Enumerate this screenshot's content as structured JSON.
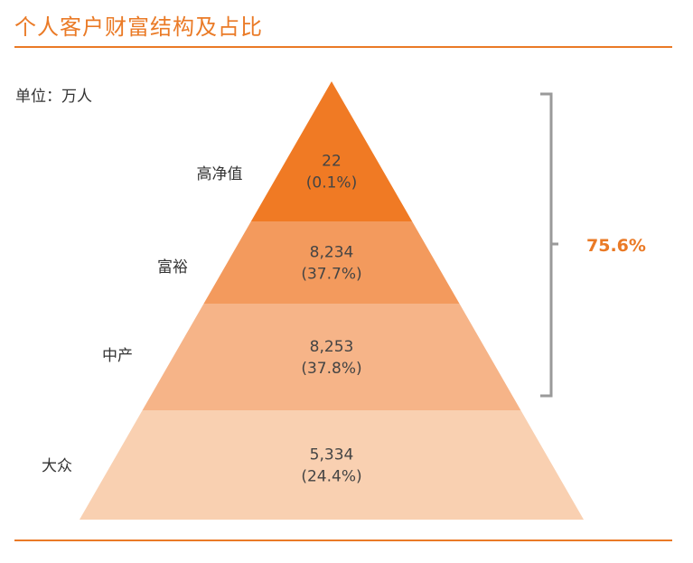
{
  "header": {
    "title": "个人客户财富结构及占比",
    "unit": "单位：万人"
  },
  "chart_data": {
    "type": "pyramid",
    "tiers": [
      {
        "label": "高净值",
        "value": "22",
        "percent": "(0.1%)",
        "color": "#f07a24"
      },
      {
        "label": "富裕",
        "value": "8,234",
        "percent": "(37.7%)",
        "color": "#f39a5d"
      },
      {
        "label": "中产",
        "value": "8,253",
        "percent": "(37.8%)",
        "color": "#f6b488"
      },
      {
        "label": "大众",
        "value": "5,334",
        "percent": "(24.4%)",
        "color": "#f9d0b1"
      }
    ],
    "bracket": {
      "label": "75.6%",
      "color": "#ea7a26",
      "line_color": "#9a9a9a"
    }
  }
}
